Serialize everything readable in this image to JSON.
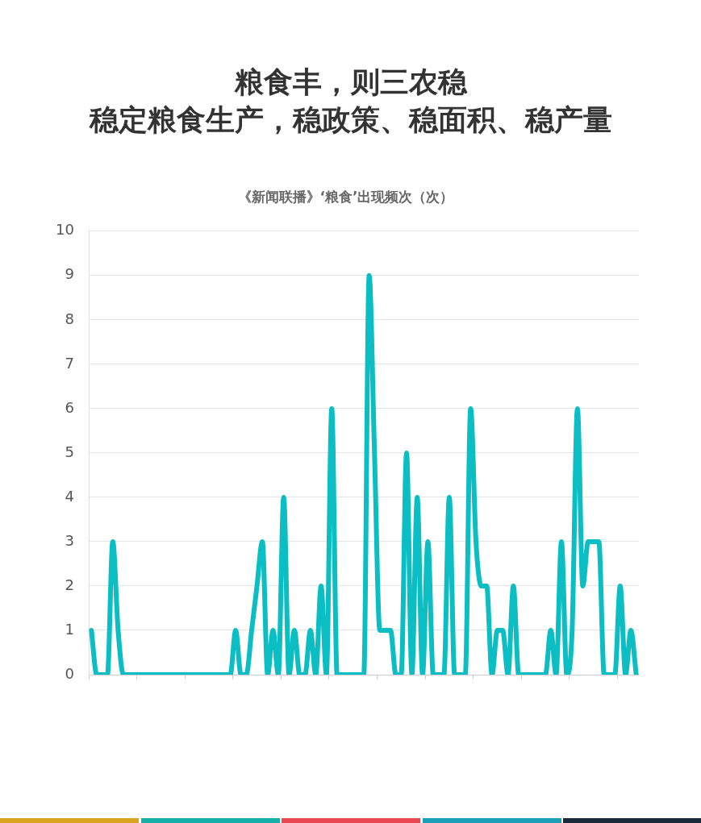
{
  "chart_data": {
    "type": "line",
    "title": "粮食丰，则三农稳",
    "subtitle": "稳定粮食生产，稳政策、稳面积、稳产量",
    "annotations": [
      "《新闻联播》‘粮食’出现频次（次）"
    ],
    "categories": [
      null,
      null,
      null,
      null,
      null,
      null,
      null,
      null,
      null,
      null,
      null,
      null,
      null,
      null,
      null,
      null,
      null,
      null,
      null,
      null,
      null,
      null,
      null,
      null,
      null,
      null,
      null,
      null,
      null,
      null,
      null,
      null,
      null,
      null,
      null,
      null,
      null,
      null,
      null,
      null,
      null,
      null,
      null,
      null,
      null,
      null,
      null,
      null,
      null,
      null,
      null,
      null,
      null,
      null,
      null,
      null,
      null,
      null,
      null,
      null,
      null,
      null,
      null,
      null,
      null,
      null,
      null,
      null,
      null,
      null,
      null,
      null,
      null,
      null,
      null,
      null,
      null,
      null,
      null,
      null,
      null,
      null,
      null,
      null,
      null,
      null,
      null,
      null,
      null,
      null,
      null,
      null,
      null,
      null,
      null,
      null,
      null,
      null,
      null,
      null,
      null,
      null,
      null
    ],
    "values": [
      1,
      0,
      0,
      0,
      3,
      1,
      0,
      0,
      0,
      0,
      0,
      0,
      0,
      0,
      0,
      0,
      0,
      0,
      0,
      0,
      0,
      0,
      0,
      0,
      0,
      0,
      0,
      1,
      0,
      0,
      1,
      2,
      3,
      0,
      1,
      0,
      4,
      0,
      1,
      0,
      0,
      1,
      0,
      2,
      0,
      6,
      0,
      0,
      0,
      0,
      0,
      0,
      9,
      5,
      1,
      1,
      1,
      0,
      0,
      5,
      0,
      4,
      0,
      3,
      0,
      0,
      0,
      4,
      0,
      0,
      0,
      6,
      3,
      2,
      2,
      0,
      1,
      1,
      0,
      2,
      0,
      0,
      0,
      0,
      0,
      0,
      1,
      0,
      3,
      0,
      1,
      6,
      2,
      3,
      3,
      3,
      0,
      0,
      0,
      2,
      0,
      1,
      0
    ],
    "color": "#0bbec3",
    "ylim": [
      0,
      10
    ],
    "yticks": [
      0,
      1,
      2,
      3,
      4,
      5,
      6,
      7,
      8,
      9,
      10
    ],
    "grid": "y",
    "marker": "none",
    "tick_labels": "y"
  }
}
